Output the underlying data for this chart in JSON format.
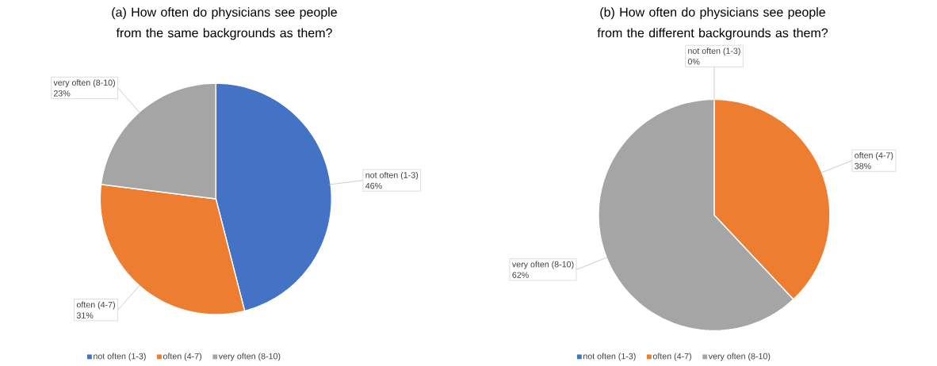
{
  "chart_data": [
    {
      "type": "pie",
      "title": "(a) How often do physicians see people from the same backgrounds as them?",
      "categories": [
        "not often (1-3)",
        "often (4-7)",
        "very often (8-10)"
      ],
      "values": [
        46,
        31,
        23
      ],
      "value_labels": [
        "46%",
        "31%",
        "23%"
      ],
      "colors": [
        "#4472c4",
        "#ed7d31",
        "#a5a5a5"
      ],
      "legend": "bottom"
    },
    {
      "type": "pie",
      "title": "(b) How often do physicians see people from the different backgrounds as them?",
      "categories": [
        "not often (1-3)",
        "often (4-7)",
        "very often (8-10)"
      ],
      "values": [
        0,
        38,
        62
      ],
      "value_labels": [
        "0%",
        "38%",
        "62%"
      ],
      "colors": [
        "#4472c4",
        "#ed7d31",
        "#a5a5a5"
      ],
      "legend": "bottom"
    }
  ]
}
